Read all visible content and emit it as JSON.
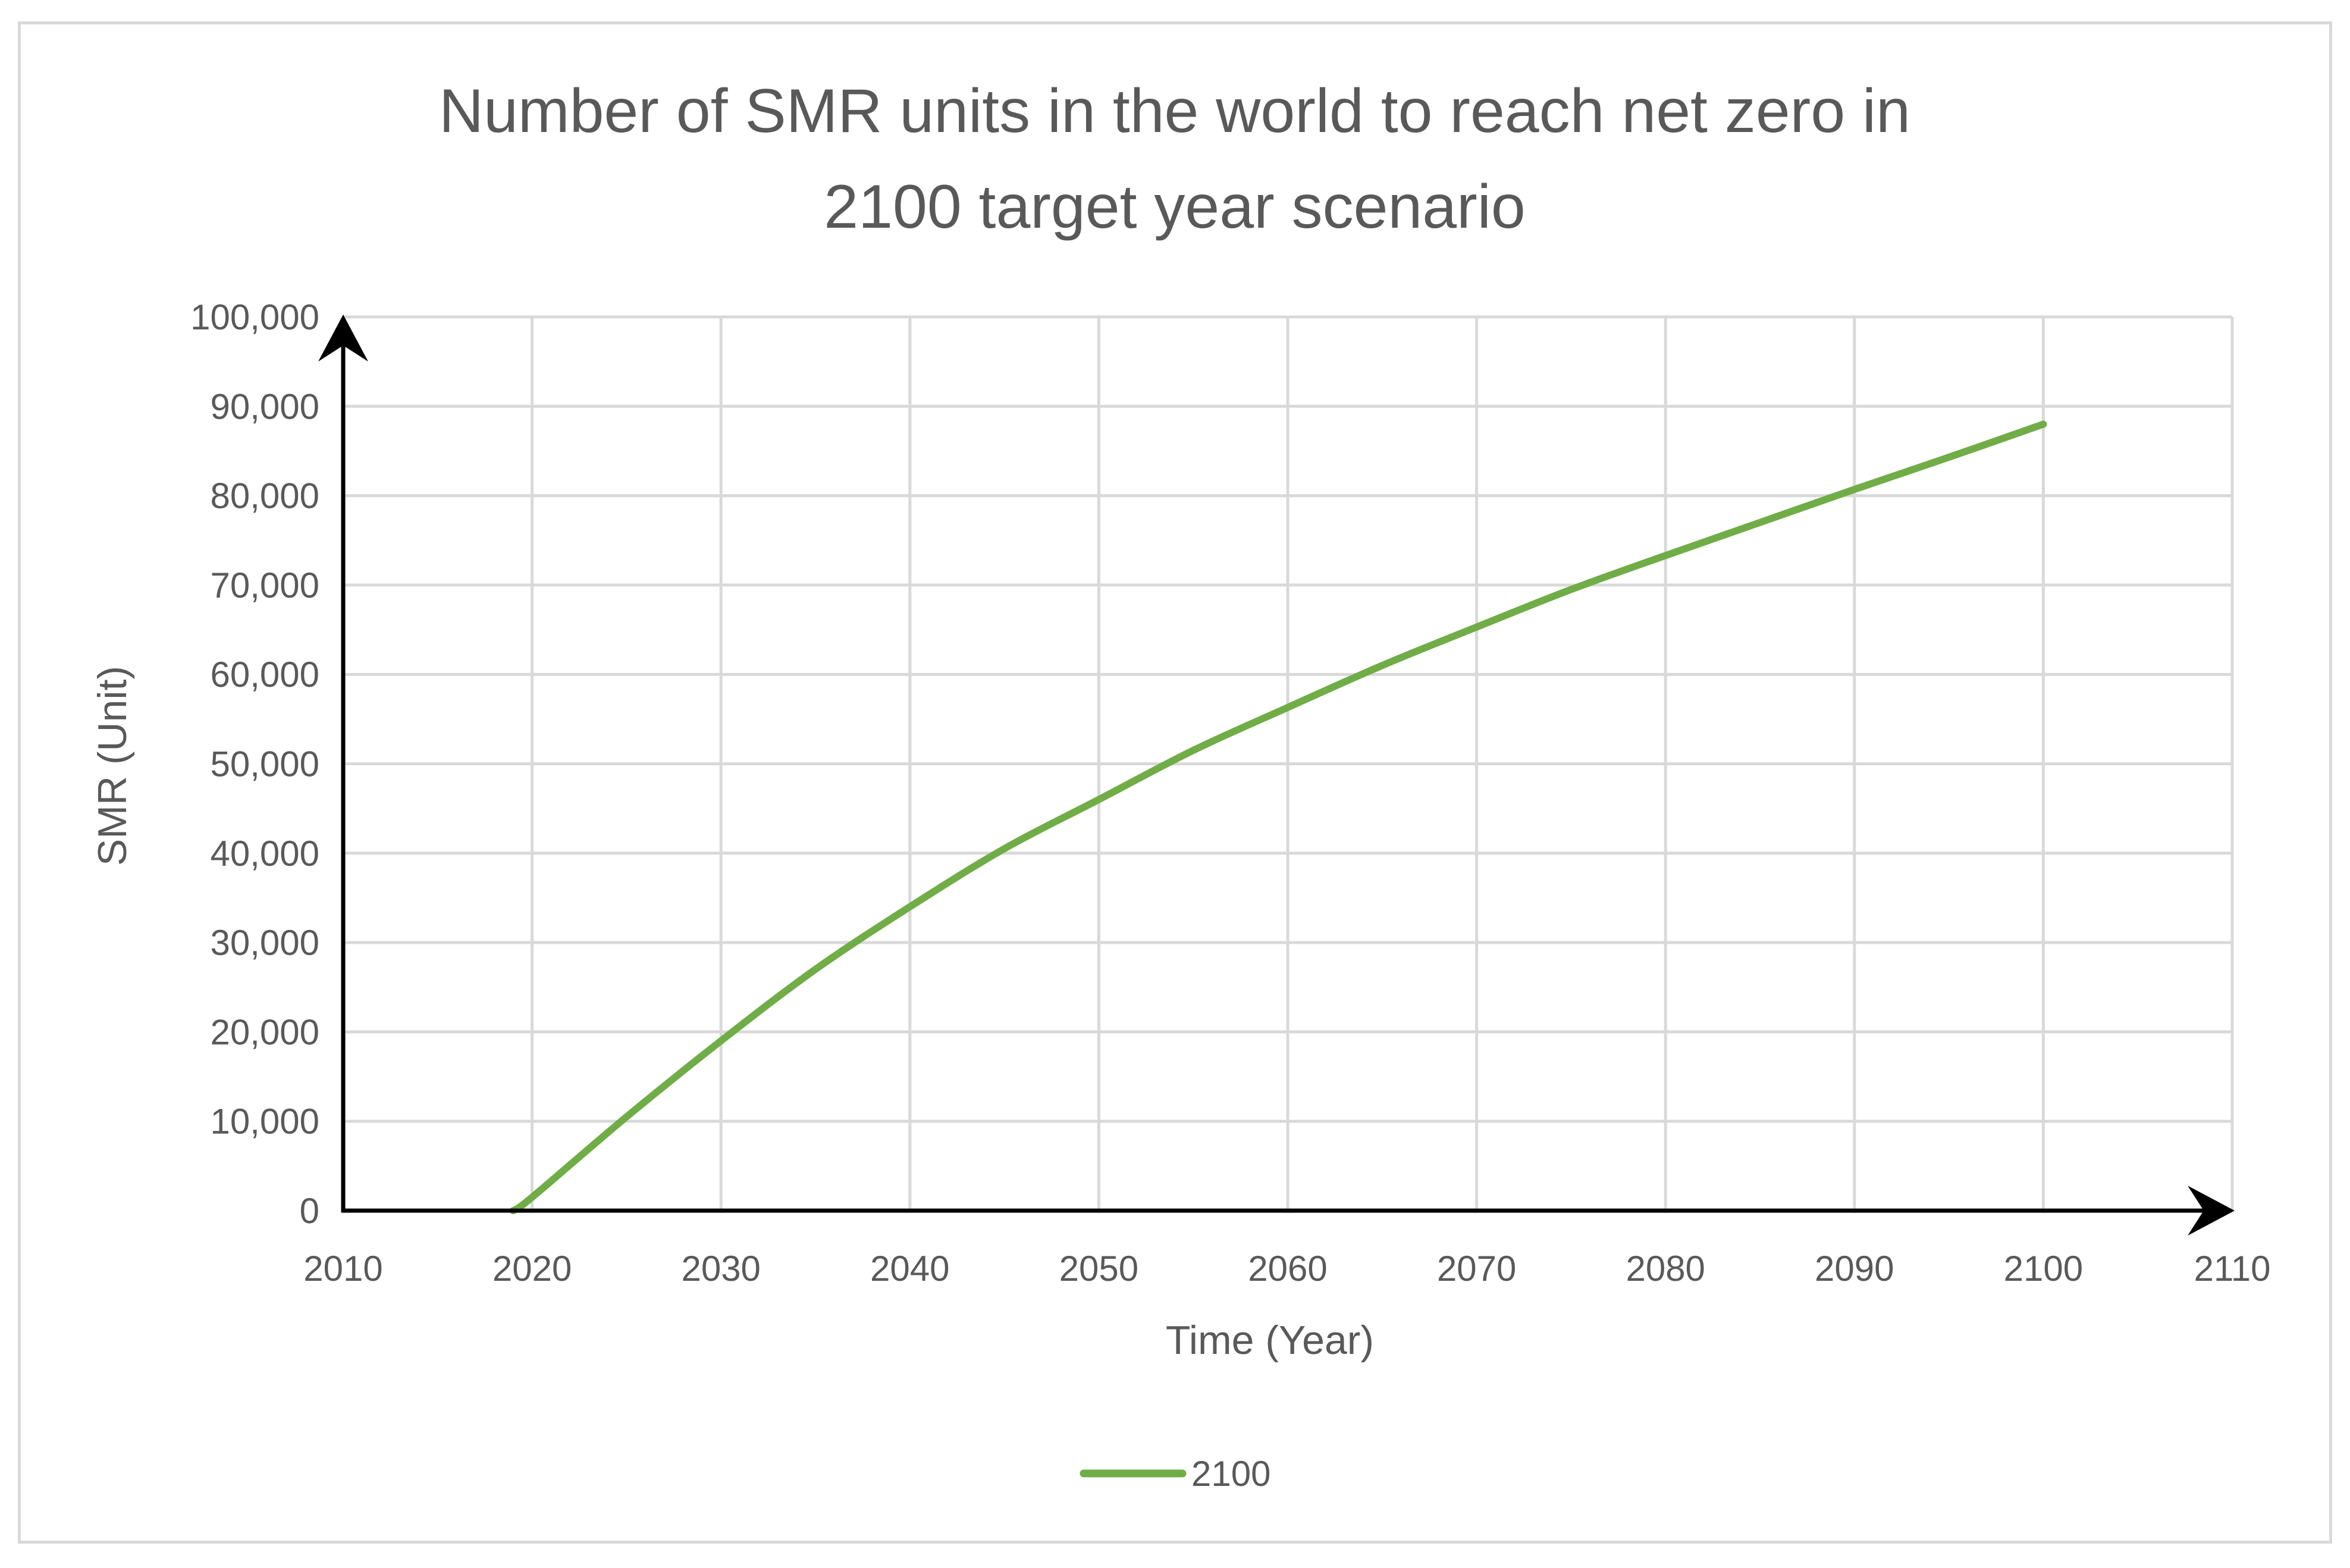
{
  "chart_data": {
    "type": "line",
    "title": "Number of SMR units in the world to reach net zero in 2100 target year scenario",
    "title_lines": [
      "Number of SMR units in the world to reach net zero in",
      "2100 target year scenario"
    ],
    "xlabel": "Time (Year)",
    "ylabel": "SMR (Unit)",
    "xlim": [
      2010,
      2110
    ],
    "ylim": [
      0,
      100000
    ],
    "x_ticks": [
      2010,
      2020,
      2030,
      2040,
      2050,
      2060,
      2070,
      2080,
      2090,
      2100,
      2110
    ],
    "y_ticks": [
      0,
      10000,
      20000,
      30000,
      40000,
      50000,
      60000,
      70000,
      80000,
      90000,
      100000
    ],
    "x_tick_labels": [
      "2010",
      "2020",
      "2030",
      "2040",
      "2050",
      "2060",
      "2070",
      "2080",
      "2090",
      "2100",
      "2110"
    ],
    "y_tick_labels": [
      "0",
      "10,000",
      "20,000",
      "30,000",
      "40,000",
      "50,000",
      "60,000",
      "70,000",
      "80,000",
      "90,000",
      "100,000"
    ],
    "grid": true,
    "legend_position": "bottom",
    "series": [
      {
        "name": "2100",
        "color": "#70ad47",
        "x": [
          2019,
          2020,
          2025,
          2030,
          2035,
          2040,
          2045,
          2050,
          2055,
          2060,
          2065,
          2070,
          2075,
          2080,
          2085,
          2090,
          2095,
          2100
        ],
        "y": [
          0,
          1500,
          10500,
          19000,
          27000,
          34000,
          40500,
          46000,
          51500,
          56300,
          61000,
          65300,
          69500,
          73300,
          77000,
          80700,
          84300,
          88000
        ]
      }
    ]
  }
}
